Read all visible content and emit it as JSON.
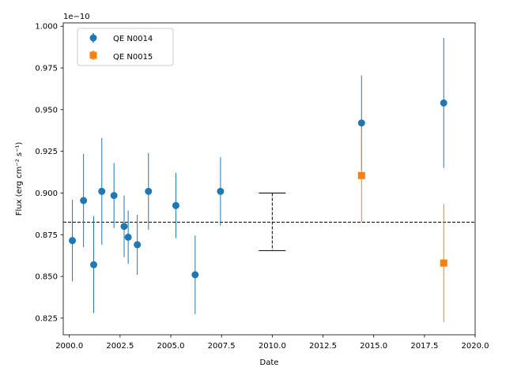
{
  "chart_data": {
    "type": "scatter",
    "xlabel": "Date",
    "ylabel": "Flux (erg cm⁻² s⁻¹)",
    "y_offset_label": "1e−10",
    "xlim": [
      1999.7,
      2020.0
    ],
    "ylim": [
      0.815,
      1.002
    ],
    "x_ticks": [
      2000.0,
      2002.5,
      2005.0,
      2007.5,
      2010.0,
      2012.5,
      2015.0,
      2017.5,
      2020.0
    ],
    "x_tick_labels": [
      "2000.0",
      "2002.5",
      "2005.0",
      "2007.5",
      "2010.0",
      "2012.5",
      "2015.0",
      "2017.5",
      "2020.0"
    ],
    "y_ticks": [
      0.825,
      0.85,
      0.875,
      0.9,
      0.925,
      0.95,
      0.975,
      1.0
    ],
    "y_tick_labels": [
      "0.825",
      "0.850",
      "0.875",
      "0.900",
      "0.925",
      "0.950",
      "0.975",
      "1.000"
    ],
    "legend_position": "top-left",
    "reference_line": {
      "y": 0.8825,
      "style": "dashed",
      "color": "#000000"
    },
    "representative_error": {
      "x": 2010.0,
      "y_low": 0.8655,
      "y_high": 0.9,
      "color": "#000000"
    },
    "series": [
      {
        "name": "QE N0014",
        "marker": "circle",
        "color": "#1f77b4",
        "points": [
          {
            "x": 2000.15,
            "y": 0.8715,
            "err": 0.0245
          },
          {
            "x": 2000.7,
            "y": 0.8955,
            "err": 0.028
          },
          {
            "x": 2001.2,
            "y": 0.857,
            "err": 0.029
          },
          {
            "x": 2001.6,
            "y": 0.901,
            "err": 0.032
          },
          {
            "x": 2002.2,
            "y": 0.8985,
            "err": 0.0195
          },
          {
            "x": 2002.7,
            "y": 0.88,
            "err": 0.0185
          },
          {
            "x": 2002.9,
            "y": 0.8735,
            "err": 0.016
          },
          {
            "x": 2003.35,
            "y": 0.869,
            "err": 0.018
          },
          {
            "x": 2003.9,
            "y": 0.901,
            "err": 0.023
          },
          {
            "x": 2005.25,
            "y": 0.8925,
            "err": 0.0195
          },
          {
            "x": 2006.2,
            "y": 0.851,
            "err": 0.0235
          },
          {
            "x": 2007.45,
            "y": 0.901,
            "err": 0.0205
          },
          {
            "x": 2014.4,
            "y": 0.942,
            "err": 0.0285
          },
          {
            "x": 2018.45,
            "y": 0.954,
            "err": 0.039
          }
        ]
      },
      {
        "name": "QE N0015",
        "marker": "square",
        "color": "#ff7f0e",
        "points": [
          {
            "x": 2014.4,
            "y": 0.9105,
            "err": 0.028
          },
          {
            "x": 2018.45,
            "y": 0.858,
            "err": 0.0355
          }
        ]
      }
    ]
  }
}
